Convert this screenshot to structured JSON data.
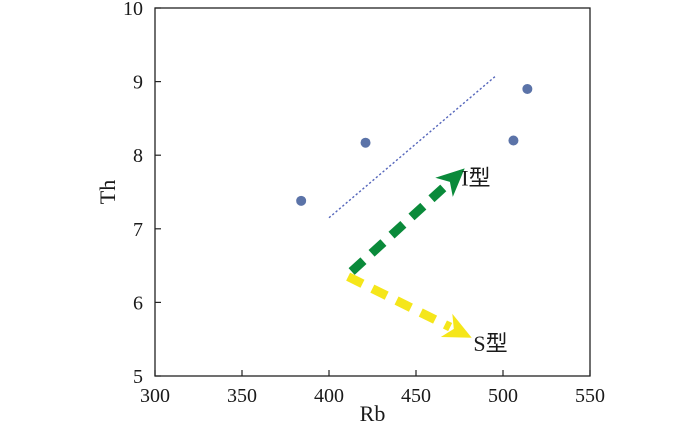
{
  "chart_data": {
    "type": "scatter",
    "xlabel": "Rb",
    "ylabel": "Th",
    "xlim": [
      300,
      550
    ],
    "ylim": [
      5,
      10
    ],
    "xticks": [
      300,
      350,
      400,
      450,
      500,
      550
    ],
    "yticks": [
      5,
      6,
      7,
      8,
      9,
      10
    ],
    "grid": false,
    "series": [
      {
        "points": [
          {
            "x": 384,
            "y": 7.38
          },
          {
            "x": 421,
            "y": 8.17
          },
          {
            "x": 506,
            "y": 8.2
          },
          {
            "x": 514,
            "y": 8.9
          }
        ],
        "color": "#5b73a8"
      }
    ],
    "trend_line": {
      "x": [
        400,
        496
      ],
      "y": [
        7.15,
        9.08
      ],
      "color": "#5566bb"
    },
    "annotations": [
      {
        "label": "I型",
        "color": "#0a8a3a",
        "from": [
          413,
          6.42
        ],
        "to": [
          478,
          7.82
        ],
        "label_at": [
          476,
          7.7
        ]
      },
      {
        "label": "S型",
        "color": "#f5e61a",
        "from": [
          411,
          6.35
        ],
        "to": [
          482,
          5.52
        ],
        "label_at": [
          483,
          5.45
        ]
      }
    ]
  }
}
